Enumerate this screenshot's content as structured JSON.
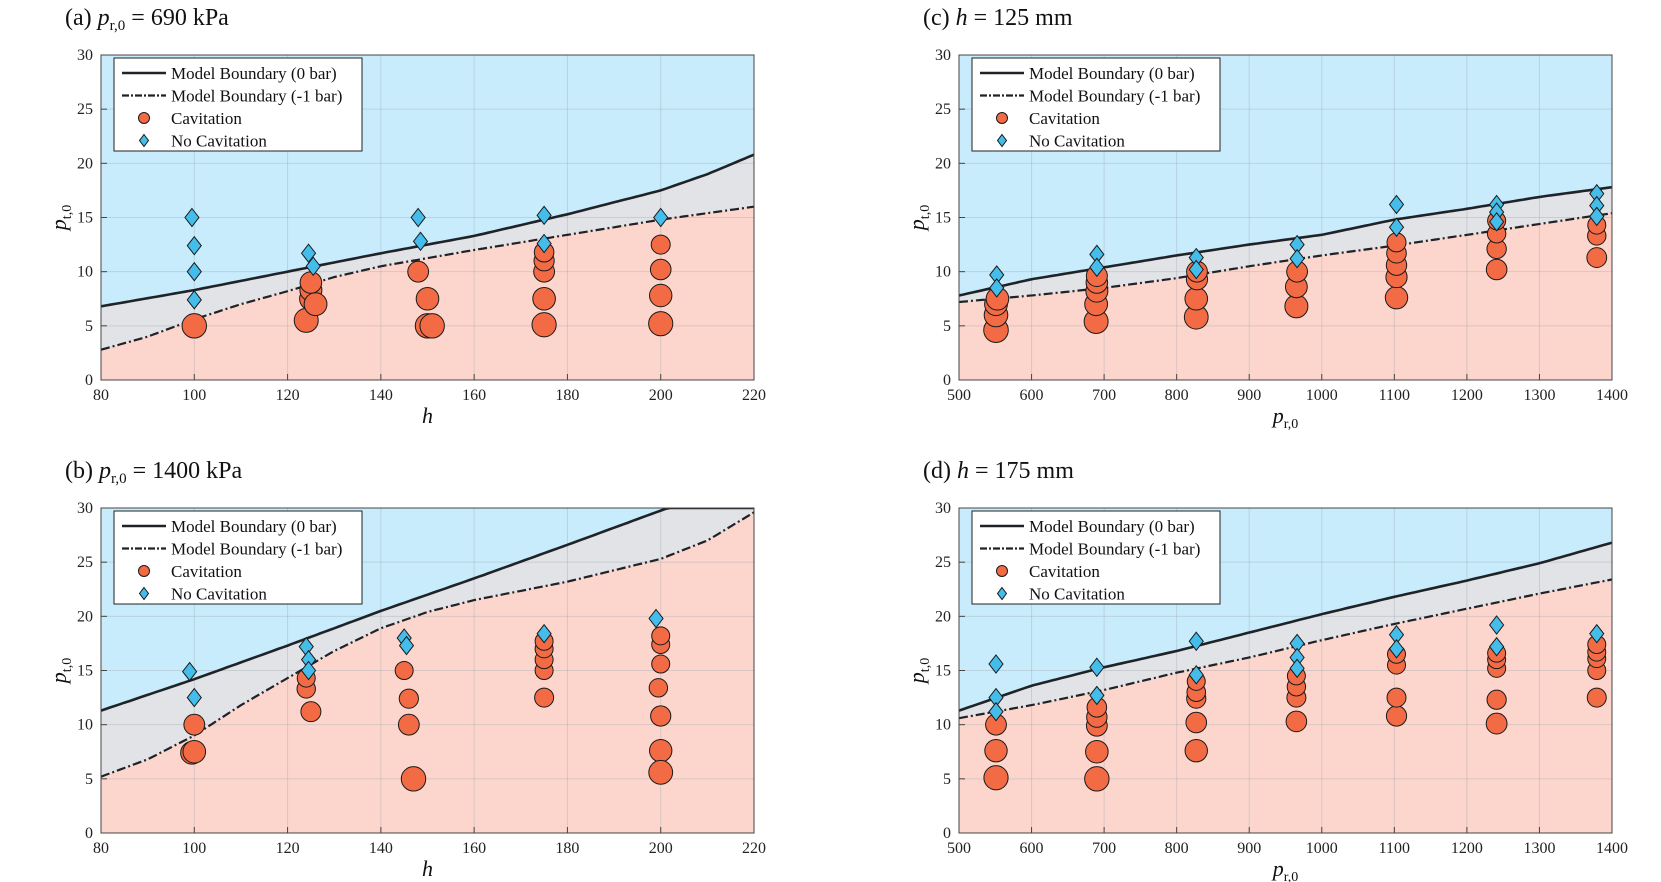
{
  "colors": {
    "no_cav_region": "#c8ecfb",
    "band_region": "#e2e3e7",
    "cav_region": "#fcd6cc",
    "cavitation_marker": "#f26b45",
    "no_cavitation_marker": "#45bdeb",
    "boundary_line": "#1f2328"
  },
  "legend": {
    "items": [
      {
        "type": "solid",
        "label": "Model Boundary (0 bar)"
      },
      {
        "type": "dashdot",
        "label": "Model Boundary (-1 bar)"
      },
      {
        "type": "circle",
        "label": "Cavitation"
      },
      {
        "type": "diamond",
        "label": "No Cavitation"
      }
    ]
  },
  "chart_data": [
    {
      "id": "a",
      "type": "scatter",
      "title": {
        "prefix": "(a) ",
        "var": "p",
        "sub": "r,0",
        "suffix": " = 690 kPa"
      },
      "xlabel": {
        "var": "h",
        "sub": ""
      },
      "ylabel": {
        "var": "p",
        "sub": "t,0"
      },
      "xlim": [
        80,
        220
      ],
      "ylim": [
        0,
        30
      ],
      "xticks": [
        80,
        100,
        120,
        140,
        160,
        180,
        200,
        220
      ],
      "yticks": [
        0,
        5,
        10,
        15,
        20,
        25,
        30
      ],
      "grid": true,
      "legend_position": "top-left",
      "boundary_0bar": [
        [
          80,
          6.8
        ],
        [
          100,
          8.3
        ],
        [
          120,
          10.0
        ],
        [
          140,
          11.7
        ],
        [
          160,
          13.3
        ],
        [
          180,
          15.3
        ],
        [
          200,
          17.5
        ],
        [
          210,
          19.0
        ],
        [
          220,
          20.8
        ]
      ],
      "boundary_minus1bar": [
        [
          80,
          2.8
        ],
        [
          90,
          4.0
        ],
        [
          100,
          5.6
        ],
        [
          110,
          7.0
        ],
        [
          120,
          8.2
        ],
        [
          130,
          9.5
        ],
        [
          140,
          10.5
        ],
        [
          160,
          12.0
        ],
        [
          180,
          13.4
        ],
        [
          200,
          14.8
        ],
        [
          220,
          16.0
        ]
      ],
      "cavitation": [
        [
          100,
          5.0
        ],
        [
          124,
          5.5
        ],
        [
          125,
          7.5
        ],
        [
          125,
          8.3
        ],
        [
          125,
          9.0
        ],
        [
          126,
          7.0
        ],
        [
          148,
          10.0
        ],
        [
          150,
          5.0
        ],
        [
          150,
          7.5
        ],
        [
          151,
          5.0
        ],
        [
          175,
          5.1
        ],
        [
          175,
          7.5
        ],
        [
          175,
          10.0
        ],
        [
          175,
          11.0
        ],
        [
          175,
          11.8
        ],
        [
          200,
          5.2
        ],
        [
          200,
          7.8
        ],
        [
          200,
          10.2
        ],
        [
          200,
          12.5
        ]
      ],
      "no_cavitation": [
        [
          99.5,
          15.0
        ],
        [
          100,
          12.4
        ],
        [
          100,
          10.0
        ],
        [
          100,
          7.4
        ],
        [
          124.5,
          11.7
        ],
        [
          125.5,
          10.5
        ],
        [
          148,
          15.0
        ],
        [
          148.5,
          12.8
        ],
        [
          175,
          15.2
        ],
        [
          175,
          12.6
        ],
        [
          200,
          15.0
        ]
      ]
    },
    {
      "id": "b",
      "type": "scatter",
      "title": {
        "prefix": "(b) ",
        "var": "p",
        "sub": "r,0",
        "suffix": " = 1400 kPa"
      },
      "xlabel": {
        "var": "h",
        "sub": ""
      },
      "ylabel": {
        "var": "p",
        "sub": "t,0"
      },
      "xlim": [
        80,
        220
      ],
      "ylim": [
        0,
        30
      ],
      "xticks": [
        80,
        100,
        120,
        140,
        160,
        180,
        200,
        220
      ],
      "yticks": [
        0,
        5,
        10,
        15,
        20,
        25,
        30
      ],
      "grid": true,
      "legend_position": "top-left",
      "boundary_0bar": [
        [
          80,
          11.3
        ],
        [
          100,
          14.2
        ],
        [
          120,
          17.3
        ],
        [
          140,
          20.5
        ],
        [
          160,
          23.5
        ],
        [
          180,
          26.6
        ],
        [
          201.5,
          30.0
        ]
      ],
      "boundary_minus1bar": [
        [
          80,
          5.2
        ],
        [
          90,
          6.8
        ],
        [
          100,
          9.0
        ],
        [
          110,
          11.8
        ],
        [
          120,
          14.3
        ],
        [
          130,
          16.8
        ],
        [
          140,
          18.9
        ],
        [
          150,
          20.4
        ],
        [
          160,
          21.5
        ],
        [
          180,
          23.2
        ],
        [
          200,
          25.3
        ],
        [
          210,
          27.0
        ],
        [
          220,
          29.6
        ]
      ],
      "cavitation": [
        [
          99.5,
          7.4
        ],
        [
          100,
          7.5
        ],
        [
          100,
          10.0
        ],
        [
          124,
          13.3
        ],
        [
          124,
          14.3
        ],
        [
          125,
          11.2
        ],
        [
          145,
          15.0
        ],
        [
          146,
          12.4
        ],
        [
          146,
          10.0
        ],
        [
          147,
          5.0
        ],
        [
          175,
          12.5
        ],
        [
          175,
          15.0
        ],
        [
          175,
          16.0
        ],
        [
          175,
          17.0
        ],
        [
          175,
          17.7
        ],
        [
          199.5,
          13.4
        ],
        [
          200,
          15.6
        ],
        [
          200,
          17.4
        ],
        [
          200,
          18.2
        ],
        [
          200,
          10.8
        ],
        [
          200,
          7.6
        ],
        [
          200,
          5.6
        ]
      ],
      "no_cavitation": [
        [
          99,
          14.9
        ],
        [
          100,
          12.5
        ],
        [
          124,
          17.2
        ],
        [
          124.5,
          16.0
        ],
        [
          124.5,
          15.0
        ],
        [
          145,
          18.0
        ],
        [
          145.5,
          17.3
        ],
        [
          175,
          18.4
        ],
        [
          199,
          19.8
        ]
      ]
    },
    {
      "id": "c",
      "type": "scatter",
      "title": {
        "prefix": "(c) ",
        "var": "h",
        "sub": "",
        "suffix": " = 125 mm"
      },
      "xlabel": {
        "var": "p",
        "sub": "r,0"
      },
      "ylabel": {
        "var": "p",
        "sub": "t,0"
      },
      "xlim": [
        500,
        1400
      ],
      "ylim": [
        0,
        30
      ],
      "xticks": [
        500,
        600,
        700,
        800,
        900,
        1000,
        1100,
        1200,
        1300,
        1400
      ],
      "yticks": [
        0,
        5,
        10,
        15,
        20,
        25,
        30
      ],
      "grid": true,
      "legend_position": "top-left",
      "boundary_0bar": [
        [
          500,
          7.8
        ],
        [
          600,
          9.3
        ],
        [
          700,
          10.4
        ],
        [
          800,
          11.5
        ],
        [
          900,
          12.5
        ],
        [
          1000,
          13.4
        ],
        [
          1100,
          14.8
        ],
        [
          1200,
          15.8
        ],
        [
          1300,
          16.9
        ],
        [
          1400,
          17.8
        ]
      ],
      "boundary_minus1bar": [
        [
          500,
          7.2
        ],
        [
          600,
          7.8
        ],
        [
          700,
          8.5
        ],
        [
          800,
          9.4
        ],
        [
          900,
          10.5
        ],
        [
          1000,
          11.5
        ],
        [
          1100,
          12.4
        ],
        [
          1200,
          13.4
        ],
        [
          1300,
          14.4
        ],
        [
          1400,
          15.4
        ]
      ],
      "cavitation": [
        [
          551,
          4.6
        ],
        [
          551,
          6.0
        ],
        [
          551,
          7.0
        ],
        [
          553,
          7.5
        ],
        [
          689,
          5.4
        ],
        [
          689,
          7.0
        ],
        [
          690,
          8.2
        ],
        [
          690,
          9.0
        ],
        [
          690,
          9.6
        ],
        [
          827,
          5.8
        ],
        [
          827,
          7.5
        ],
        [
          828,
          9.3
        ],
        [
          828,
          10.0
        ],
        [
          965,
          6.8
        ],
        [
          965,
          8.6
        ],
        [
          966,
          10.0
        ],
        [
          1103,
          7.6
        ],
        [
          1103,
          9.5
        ],
        [
          1103,
          10.6
        ],
        [
          1103,
          11.7
        ],
        [
          1103,
          12.7
        ],
        [
          1241,
          10.2
        ],
        [
          1241,
          12.1
        ],
        [
          1241,
          13.5
        ],
        [
          1241,
          14.7
        ],
        [
          1379,
          11.3
        ],
        [
          1379,
          13.3
        ],
        [
          1379,
          14.3
        ]
      ],
      "no_cavitation": [
        [
          552,
          9.7
        ],
        [
          552,
          8.5
        ],
        [
          690,
          11.6
        ],
        [
          690,
          10.4
        ],
        [
          827,
          11.3
        ],
        [
          827,
          10.2
        ],
        [
          966,
          12.5
        ],
        [
          966,
          11.2
        ],
        [
          1103,
          16.2
        ],
        [
          1103,
          14.1
        ],
        [
          1241,
          16.2
        ],
        [
          1241,
          15.5
        ],
        [
          1241,
          14.6
        ],
        [
          1379,
          17.2
        ],
        [
          1379,
          16.1
        ],
        [
          1379,
          15.1
        ]
      ]
    },
    {
      "id": "d",
      "type": "scatter",
      "title": {
        "prefix": "(d) ",
        "var": "h",
        "sub": "",
        "suffix": " = 175 mm"
      },
      "xlabel": {
        "var": "p",
        "sub": "r,0"
      },
      "ylabel": {
        "var": "p",
        "sub": "t,0"
      },
      "xlim": [
        500,
        1400
      ],
      "ylim": [
        0,
        30
      ],
      "xticks": [
        500,
        600,
        700,
        800,
        900,
        1000,
        1100,
        1200,
        1300,
        1400
      ],
      "yticks": [
        0,
        5,
        10,
        15,
        20,
        25,
        30
      ],
      "grid": true,
      "legend_position": "top-left",
      "boundary_0bar": [
        [
          500,
          11.3
        ],
        [
          600,
          13.6
        ],
        [
          700,
          15.3
        ],
        [
          800,
          16.8
        ],
        [
          900,
          18.5
        ],
        [
          1000,
          20.2
        ],
        [
          1100,
          21.8
        ],
        [
          1200,
          23.3
        ],
        [
          1300,
          24.9
        ],
        [
          1400,
          26.8
        ]
      ],
      "boundary_minus1bar": [
        [
          500,
          10.6
        ],
        [
          600,
          11.8
        ],
        [
          700,
          13.2
        ],
        [
          800,
          14.8
        ],
        [
          900,
          16.2
        ],
        [
          1000,
          17.8
        ],
        [
          1100,
          19.3
        ],
        [
          1200,
          20.7
        ],
        [
          1300,
          22.1
        ],
        [
          1400,
          23.4
        ]
      ],
      "cavitation": [
        [
          551,
          5.1
        ],
        [
          551,
          7.6
        ],
        [
          551,
          10.0
        ],
        [
          690,
          5.0
        ],
        [
          690,
          7.5
        ],
        [
          690,
          9.9
        ],
        [
          690,
          10.7
        ],
        [
          690,
          11.6
        ],
        [
          827,
          7.6
        ],
        [
          827,
          10.2
        ],
        [
          827,
          12.4
        ],
        [
          827,
          13.0
        ],
        [
          827,
          14.0
        ],
        [
          965,
          10.3
        ],
        [
          965,
          12.5
        ],
        [
          965,
          13.5
        ],
        [
          965,
          14.5
        ],
        [
          1103,
          10.8
        ],
        [
          1103,
          12.5
        ],
        [
          1103,
          15.5
        ],
        [
          1103,
          16.5
        ],
        [
          1241,
          10.1
        ],
        [
          1241,
          12.3
        ],
        [
          1241,
          15.2
        ],
        [
          1241,
          16.0
        ],
        [
          1241,
          16.6
        ],
        [
          1379,
          12.5
        ],
        [
          1379,
          15.0
        ],
        [
          1379,
          16.1
        ],
        [
          1379,
          16.7
        ],
        [
          1379,
          17.4
        ]
      ],
      "no_cavitation": [
        [
          551,
          15.6
        ],
        [
          551,
          12.5
        ],
        [
          551,
          11.2
        ],
        [
          690,
          15.3
        ],
        [
          690,
          12.7
        ],
        [
          827,
          17.7
        ],
        [
          827,
          14.6
        ],
        [
          966,
          17.5
        ],
        [
          966,
          16.2
        ],
        [
          966,
          15.2
        ],
        [
          1103,
          18.3
        ],
        [
          1103,
          17.0
        ],
        [
          1241,
          19.2
        ],
        [
          1241,
          17.2
        ],
        [
          1379,
          18.4
        ]
      ]
    }
  ]
}
